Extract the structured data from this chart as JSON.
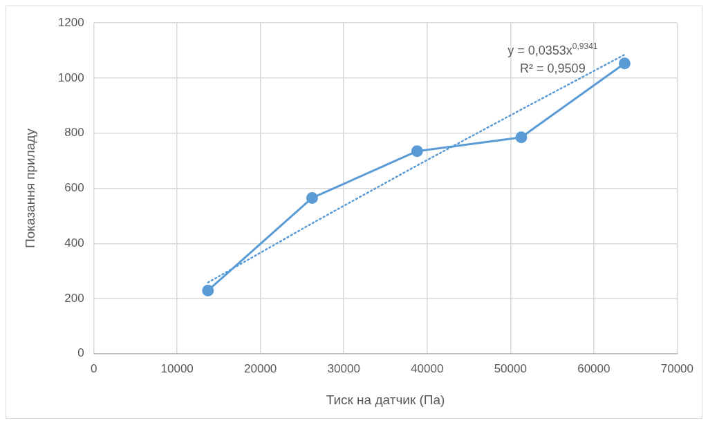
{
  "chart_data": {
    "type": "line",
    "xlabel": "Тиск на датчик (Па)",
    "ylabel": "Показання приладу",
    "xlim": [
      0,
      70000
    ],
    "xticks": [
      0,
      10000,
      20000,
      30000,
      40000,
      50000,
      60000,
      70000
    ],
    "ylim": [
      0,
      1200
    ],
    "yticks": [
      0,
      200,
      400,
      600,
      800,
      1000,
      1200
    ],
    "grid": true,
    "legend": false,
    "annotations": [
      "y = 0,0353x$^{0,9341}$",
      "R² = 0,9509"
    ],
    "series": [
      {
        "color": "#5b9bd5",
        "marker": "circle",
        "line_style": "solid",
        "x": [
          13700,
          26200,
          38800,
          51300,
          63700
        ],
        "values": [
          229,
          565,
          735,
          785,
          1053
        ]
      },
      {
        "color": "#5b9bd5",
        "marker": "none",
        "line_style": "dotted",
        "x": [
          13700,
          26200,
          38800,
          51300,
          63700
        ],
        "values": [
          258,
          473,
          683,
          886,
          1085
        ]
      }
    ]
  }
}
